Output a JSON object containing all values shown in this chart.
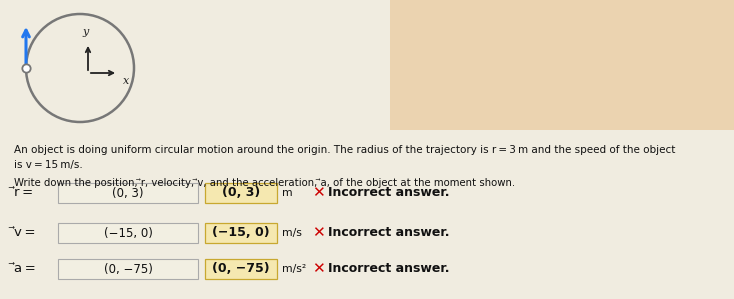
{
  "bg_color": "#f0ece0",
  "upper_right_color": "#e8c08a",
  "text_color": "#111111",
  "title_text1": "An object is doing uniform circular motion around the origin. The radius of the trajectory is r = 3 m and the speed of the object",
  "title_text2": "is v = 15 m/s.",
  "subtitle_text": "Write down the position, ⃗r, velocity, ⃗v, and the acceleration, ⃗a, of the object at the moment shown.",
  "row1_label": "⃗r =",
  "row1_input": "(0, 3)",
  "row1_answer": "(0, 3)",
  "row1_unit": "m",
  "row2_label": "⃗v =",
  "row2_input": "(−15, 0)",
  "row2_answer": "(−15, 0)",
  "row2_unit": "m/s",
  "row3_label": "⃗a =",
  "row3_input": "(0, −75)",
  "row3_answer": "(0, −75)",
  "row3_unit": "m/s²",
  "incorrect_text": "Incorrect answer.",
  "circle_color": "#777777",
  "arrow_blue": "#2277ee",
  "axes_color": "#222222",
  "input_box_color": "#f2efe2",
  "input_box_edge": "#aaaaaa",
  "answer_box_color": "#f5e8b0",
  "answer_box_edge": "#c8a830",
  "incorrect_x_color": "#cc0000",
  "incorrect_text_color": "#111111"
}
